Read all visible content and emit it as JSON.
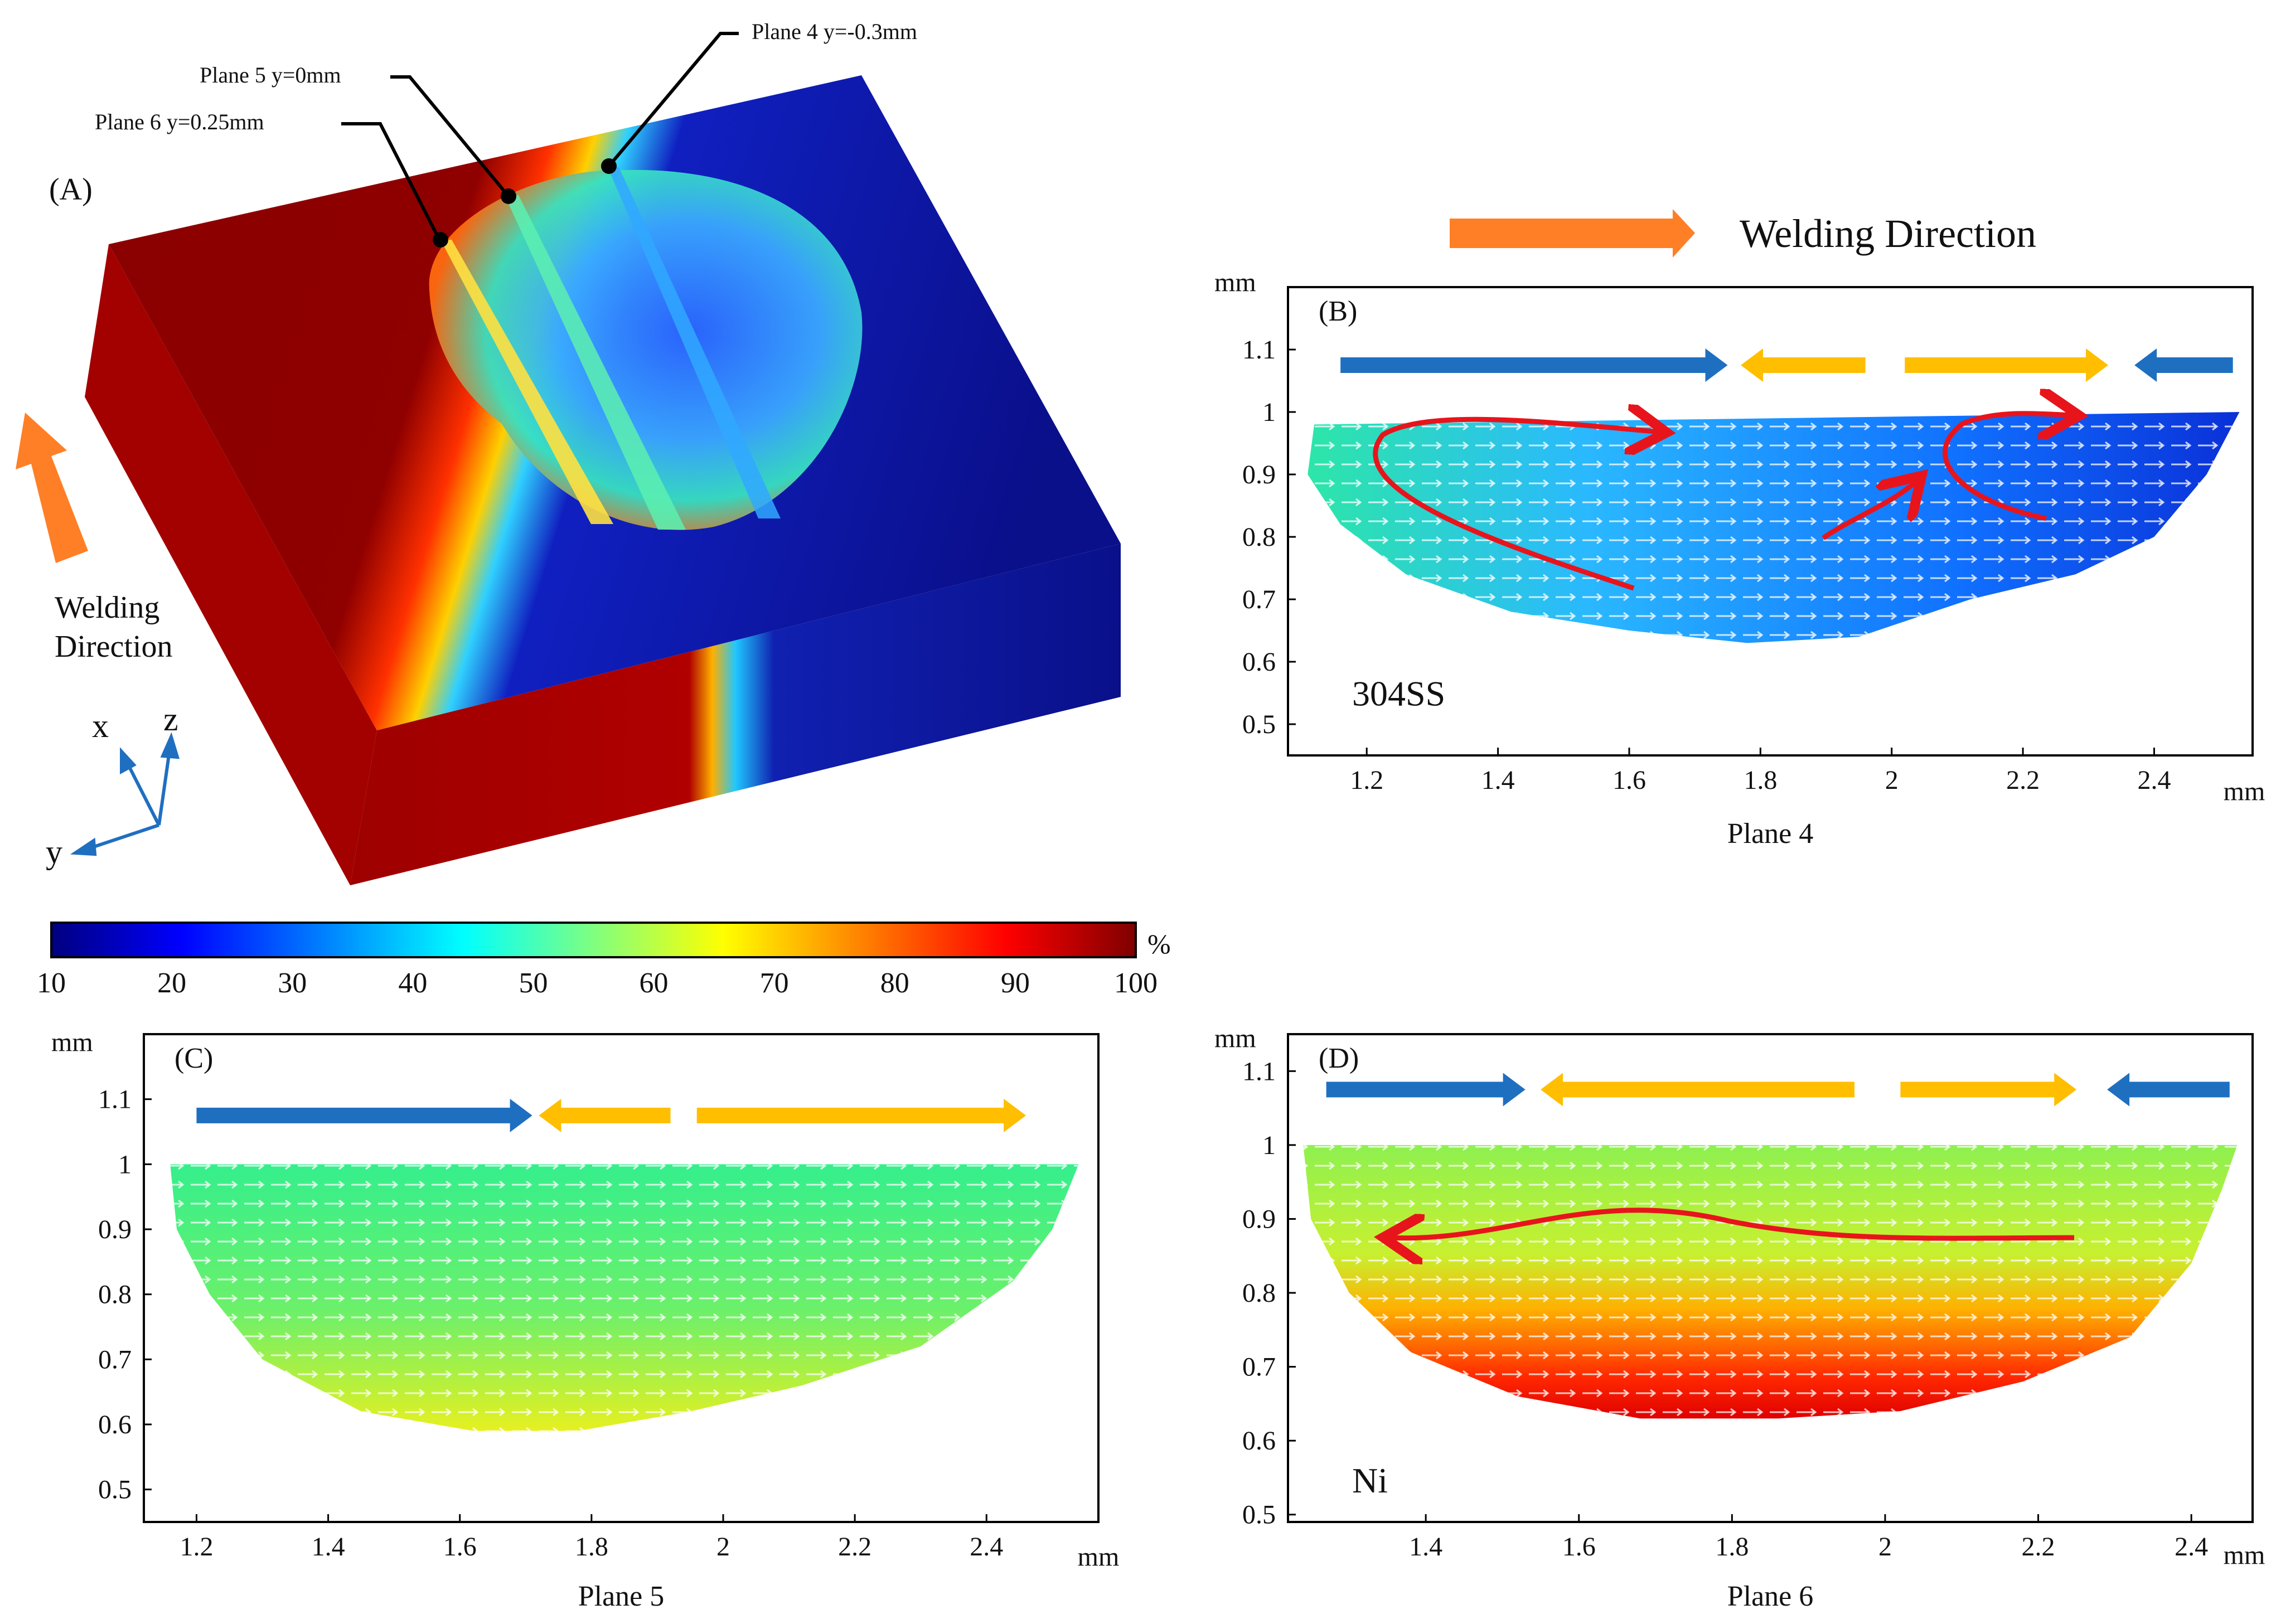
{
  "panel_a": {
    "label": "(A)",
    "planes": [
      "Plane 6 y=0.25mm",
      "Plane 5 y=0mm",
      "Plane 4 y=-0.3mm"
    ],
    "welding_direction": [
      "Welding",
      "Direction"
    ],
    "axes": {
      "x": "x",
      "y": "y",
      "z": "z"
    }
  },
  "colorbar": {
    "ticks": [
      "10",
      "20",
      "30",
      "40",
      "50",
      "60",
      "70",
      "80",
      "90",
      "100"
    ],
    "unit": "%",
    "colors": [
      "#00007f",
      "#0000ff",
      "#007fff",
      "#00ffff",
      "#7fff7f",
      "#ffff00",
      "#ff7f00",
      "#ff0000",
      "#7f0000"
    ]
  },
  "welding_direction_label": "Welding Direction",
  "chart_data": [
    {
      "type": "contour-cross-section",
      "panel": "(B)",
      "title": "Plane 4",
      "xlabel": "mm",
      "ylabel": "mm",
      "xlim": [
        1.08,
        2.55
      ],
      "ylim": [
        0.45,
        1.2
      ],
      "xticks": [
        "1.2",
        "1.4",
        "1.6",
        "1.8",
        "2",
        "2.2",
        "2.4"
      ],
      "yticks": [
        "0.5",
        "0.6",
        "0.7",
        "0.8",
        "0.9",
        "1",
        "1.1"
      ],
      "annotation": "304SS",
      "flow_arrows": [
        {
          "from": 1.16,
          "to": 1.75,
          "color": "blue"
        },
        {
          "from": 1.96,
          "to": 1.77,
          "color": "yellow"
        },
        {
          "from": 2.02,
          "to": 2.33,
          "color": "yellow"
        },
        {
          "from": 2.52,
          "to": 2.37,
          "color": "blue"
        }
      ],
      "surface_color": "blue",
      "boundary": [
        [
          1.12,
          0.98
        ],
        [
          1.11,
          0.9
        ],
        [
          1.16,
          0.82
        ],
        [
          1.26,
          0.74
        ],
        [
          1.42,
          0.68
        ],
        [
          1.6,
          0.65
        ],
        [
          1.78,
          0.63
        ],
        [
          1.95,
          0.64
        ],
        [
          2.12,
          0.7
        ],
        [
          2.28,
          0.74
        ],
        [
          2.4,
          0.8
        ],
        [
          2.48,
          0.9
        ],
        [
          2.53,
          1.0
        ]
      ]
    },
    {
      "type": "contour-cross-section",
      "panel": "(C)",
      "title": "Plane 5",
      "xlabel": "mm",
      "ylabel": "mm",
      "xlim": [
        1.12,
        2.57
      ],
      "ylim": [
        0.45,
        1.2
      ],
      "xticks": [
        "1.2",
        "1.4",
        "1.6",
        "1.8",
        "2",
        "2.2",
        "2.4"
      ],
      "yticks": [
        "0.5",
        "0.6",
        "0.7",
        "0.8",
        "0.9",
        "1",
        "1.1"
      ],
      "annotation": "",
      "flow_arrows": [
        {
          "from": 1.2,
          "to": 1.71,
          "color": "blue"
        },
        {
          "from": 1.92,
          "to": 1.72,
          "color": "yellow"
        },
        {
          "from": 1.96,
          "to": 2.46,
          "color": "yellow"
        }
      ],
      "surface_color": "green",
      "boundary": [
        [
          1.16,
          1.0
        ],
        [
          1.17,
          0.9
        ],
        [
          1.22,
          0.8
        ],
        [
          1.3,
          0.7
        ],
        [
          1.45,
          0.62
        ],
        [
          1.62,
          0.59
        ],
        [
          1.78,
          0.59
        ],
        [
          1.95,
          0.62
        ],
        [
          2.12,
          0.66
        ],
        [
          2.3,
          0.72
        ],
        [
          2.44,
          0.82
        ],
        [
          2.5,
          0.9
        ],
        [
          2.54,
          1.0
        ]
      ]
    },
    {
      "type": "contour-cross-section",
      "panel": "(D)",
      "title": "Plane 6",
      "xlabel": "mm",
      "ylabel": "mm",
      "xlim": [
        1.22,
        2.48
      ],
      "ylim": [
        0.49,
        1.15
      ],
      "xticks": [
        "1.4",
        "1.6",
        "1.8",
        "2",
        "2.2",
        "2.4"
      ],
      "yticks": [
        "0.5",
        "0.6",
        "0.7",
        "0.8",
        "0.9",
        "1",
        "1.1"
      ],
      "annotation": "Ni",
      "flow_arrows": [
        {
          "from": 1.27,
          "to": 1.53,
          "color": "blue"
        },
        {
          "from": 1.96,
          "to": 1.55,
          "color": "yellow"
        },
        {
          "from": 2.02,
          "to": 2.25,
          "color": "yellow"
        },
        {
          "from": 2.45,
          "to": 2.29,
          "color": "blue"
        }
      ],
      "surface_color": "red",
      "boundary": [
        [
          1.24,
          1.0
        ],
        [
          1.25,
          0.9
        ],
        [
          1.3,
          0.8
        ],
        [
          1.38,
          0.72
        ],
        [
          1.52,
          0.66
        ],
        [
          1.68,
          0.63
        ],
        [
          1.86,
          0.63
        ],
        [
          2.02,
          0.64
        ],
        [
          2.18,
          0.68
        ],
        [
          2.32,
          0.74
        ],
        [
          2.4,
          0.84
        ],
        [
          2.44,
          0.94
        ],
        [
          2.46,
          1.0
        ]
      ]
    }
  ]
}
